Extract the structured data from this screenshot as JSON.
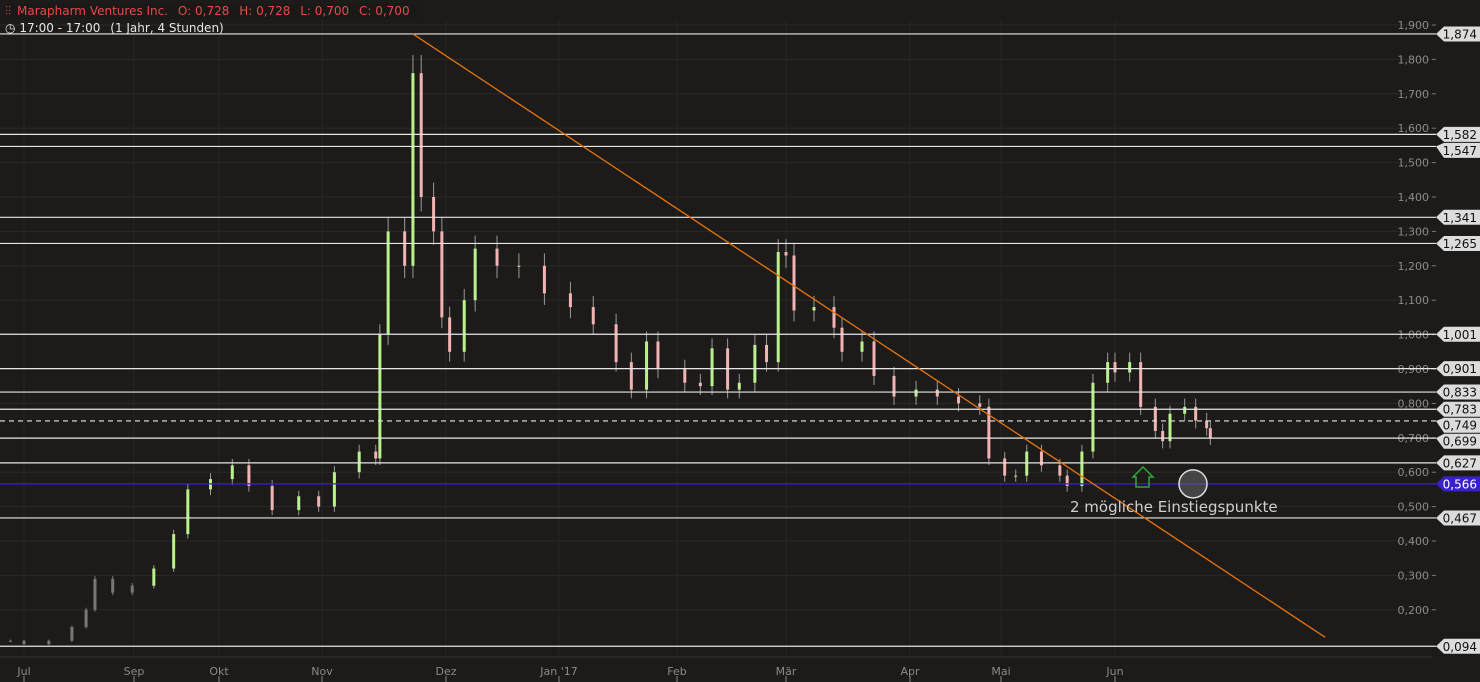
{
  "header": {
    "icon": "candlestick-icon",
    "name": "Marapharm Ventures Inc.",
    "open": "O: 0,728",
    "high": "H: 0,728",
    "low": "L: 0,700",
    "close": "C: 0,700",
    "time_icon": "clock-icon",
    "time_range": "17:00 - 17:00",
    "period": "(1 Jahr, 4 Stunden)"
  },
  "annotation": "2 mögliche Einstiegspunkte",
  "colors": {
    "background": "#1c1b1a",
    "up": "#b9f28c",
    "down": "#f2b3b3",
    "trendline": "#e8740c",
    "support": "#3a1fd0",
    "level": "#e6e6e6",
    "arrow": "#2fa83a"
  },
  "chart_data": {
    "type": "candlestick",
    "title": "Marapharm Ventures Inc.",
    "ylim": [
      0.07,
      1.92
    ],
    "y_ticks": [
      "0,200",
      "0,300",
      "0,400",
      "0,500",
      "0,600",
      "0,700",
      "0,800",
      "0,900",
      "1,000",
      "1,100",
      "1,200",
      "1,300",
      "1,400",
      "1,500",
      "1,600",
      "1,700",
      "1,800",
      "1,900"
    ],
    "y_tick_values": [
      0.2,
      0.3,
      0.4,
      0.5,
      0.6,
      0.7,
      0.8,
      0.9,
      1.0,
      1.1,
      1.2,
      1.3,
      1.4,
      1.5,
      1.6,
      1.7,
      1.8,
      1.9
    ],
    "x_ticks": [
      {
        "label": "Jul",
        "date": "2016-07-01"
      },
      {
        "label": "Sep",
        "date": "2016-09-01"
      },
      {
        "label": "Okt",
        "date": "2016-10-01"
      },
      {
        "label": "Nov",
        "date": "2016-11-01"
      },
      {
        "label": "Dez",
        "date": "2016-12-01"
      },
      {
        "label": "Jan '17",
        "date": "2017-01-01"
      },
      {
        "label": "Feb",
        "date": "2017-02-01"
      },
      {
        "label": "Mär",
        "date": "2017-03-01"
      },
      {
        "label": "Apr",
        "date": "2017-04-01"
      },
      {
        "label": "Mai",
        "date": "2017-05-01"
      },
      {
        "label": "Jun",
        "date": "2017-06-01"
      }
    ],
    "grid": true,
    "series": [
      [
        "2016-06-20",
        0.11
      ],
      [
        "2016-07-01",
        0.1
      ],
      [
        "2016-07-15",
        0.11
      ],
      [
        "2016-07-28",
        0.15
      ],
      [
        "2016-08-05",
        0.2
      ],
      [
        "2016-08-10",
        0.29
      ],
      [
        "2016-08-20",
        0.25
      ],
      [
        "2016-08-31",
        0.27
      ],
      [
        "2016-09-08",
        0.32
      ],
      [
        "2016-09-15",
        0.42
      ],
      [
        "2016-09-20",
        0.55
      ],
      [
        "2016-09-28",
        0.58
      ],
      [
        "2016-10-05",
        0.62
      ],
      [
        "2016-10-10",
        0.56
      ],
      [
        "2016-10-17",
        0.49
      ],
      [
        "2016-10-25",
        0.53
      ],
      [
        "2016-10-31",
        0.5
      ],
      [
        "2016-11-04",
        0.6
      ],
      [
        "2016-11-10",
        0.66
      ],
      [
        "2016-11-14",
        0.64
      ],
      [
        "2016-11-15",
        1.0
      ],
      [
        "2016-11-17",
        1.3
      ],
      [
        "2016-11-21",
        1.2
      ],
      [
        "2016-11-23",
        1.76
      ],
      [
        "2016-11-25",
        1.4
      ],
      [
        "2016-11-28",
        1.3
      ],
      [
        "2016-11-30",
        1.05
      ],
      [
        "2016-12-02",
        0.95
      ],
      [
        "2016-12-06",
        1.1
      ],
      [
        "2016-12-09",
        1.25
      ],
      [
        "2016-12-15",
        1.2
      ],
      [
        "2016-12-21",
        1.2
      ],
      [
        "2016-12-28",
        1.12
      ],
      [
        "2017-01-04",
        1.08
      ],
      [
        "2017-01-10",
        1.03
      ],
      [
        "2017-01-16",
        0.92
      ],
      [
        "2017-01-20",
        0.84
      ],
      [
        "2017-01-24",
        0.98
      ],
      [
        "2017-01-27",
        0.9
      ],
      [
        "2017-02-03",
        0.86
      ],
      [
        "2017-02-07",
        0.85
      ],
      [
        "2017-02-10",
        0.96
      ],
      [
        "2017-02-14",
        0.84
      ],
      [
        "2017-02-17",
        0.86
      ],
      [
        "2017-02-21",
        0.97
      ],
      [
        "2017-02-24",
        0.92
      ],
      [
        "2017-02-27",
        1.24
      ],
      [
        "2017-03-01",
        1.23
      ],
      [
        "2017-03-03",
        1.07
      ],
      [
        "2017-03-08",
        1.08
      ],
      [
        "2017-03-13",
        1.02
      ],
      [
        "2017-03-15",
        0.95
      ],
      [
        "2017-03-20",
        0.98
      ],
      [
        "2017-03-23",
        0.88
      ],
      [
        "2017-03-28",
        0.82
      ],
      [
        "2017-04-03",
        0.84
      ],
      [
        "2017-04-10",
        0.82
      ],
      [
        "2017-04-17",
        0.8
      ],
      [
        "2017-04-24",
        0.79
      ],
      [
        "2017-04-27",
        0.64
      ],
      [
        "2017-05-02",
        0.59
      ],
      [
        "2017-05-05",
        0.59
      ],
      [
        "2017-05-08",
        0.66
      ],
      [
        "2017-05-12",
        0.62
      ],
      [
        "2017-05-17",
        0.59
      ],
      [
        "2017-05-19",
        0.56
      ],
      [
        "2017-05-23",
        0.66
      ],
      [
        "2017-05-26",
        0.86
      ],
      [
        "2017-05-30",
        0.92
      ],
      [
        "2017-06-01",
        0.89
      ],
      [
        "2017-06-05",
        0.92
      ],
      [
        "2017-06-08",
        0.79
      ],
      [
        "2017-06-12",
        0.72
      ],
      [
        "2017-06-14",
        0.69
      ],
      [
        "2017-06-16",
        0.77
      ],
      [
        "2017-06-20",
        0.79
      ],
      [
        "2017-06-23",
        0.75
      ],
      [
        "2017-06-26",
        0.728
      ],
      [
        "2017-06-27",
        0.7
      ]
    ],
    "levels": [
      {
        "value": 1.874,
        "label": "1,874"
      },
      {
        "value": 1.582,
        "label": "1,582"
      },
      {
        "value": 1.547,
        "label": "1,547"
      },
      {
        "value": 1.341,
        "label": "1,341"
      },
      {
        "value": 1.265,
        "label": "1,265"
      },
      {
        "value": 1.001,
        "label": "1,001"
      },
      {
        "value": 0.901,
        "label": "0,901"
      },
      {
        "value": 0.833,
        "label": "0,833"
      },
      {
        "value": 0.783,
        "label": "0,783"
      },
      {
        "value": 0.749,
        "label": "0,749",
        "style": "dashed"
      },
      {
        "value": 0.699,
        "label": "0,699"
      },
      {
        "value": 0.627,
        "label": "0,627"
      },
      {
        "value": 0.566,
        "label": "0,566",
        "style": "support"
      },
      {
        "value": 0.467,
        "label": "0,467"
      },
      {
        "value": 0.094,
        "label": "0,094"
      }
    ],
    "trendline": {
      "from": [
        "2016-11-23",
        1.874
      ],
      "to": [
        "2017-07-28",
        0.12
      ]
    }
  }
}
